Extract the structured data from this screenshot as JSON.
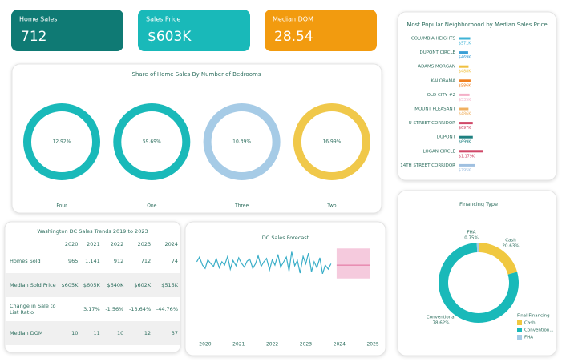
{
  "kpis": [
    {
      "label": "Home Sales",
      "value": "712",
      "color": "#0f7a74"
    },
    {
      "label": "Sales Price",
      "value": "$603K",
      "color": "#19b9b9"
    },
    {
      "label": "Median DOM",
      "value": "28.54",
      "color": "#f29b0f"
    }
  ],
  "chart_data": [
    {
      "type": "donut-grid",
      "title": "Share of Home Sales By Number of Bedrooms",
      "categories": [
        "Four",
        "One",
        "Three",
        "Two"
      ],
      "values": [
        12.92,
        59.69,
        10.39,
        16.99
      ],
      "value_labels": [
        "12.92%",
        "59.69%",
        "10.39%",
        "16.99%"
      ],
      "colors": [
        "#19b9b9",
        "#19b9b9",
        "#a6cbe6",
        "#f0c84a"
      ]
    },
    {
      "type": "hbar",
      "title": "Most Popular Neighborhood by Median Sales Price",
      "categories": [
        "COLUMBIA HEIGHTS",
        "DUPONT CIRCLE",
        "ADAMS MORGAN",
        "KALORAMA",
        "OLD CITY #2",
        "MOUNT PLEASANT",
        "U STREET CORRIDOR",
        "DUPONT",
        "LOGAN CIRCLE",
        "14TH STREET CORRIDOR"
      ],
      "values": [
        571,
        469,
        488,
        586,
        535,
        486,
        697,
        699,
        1179,
        795
      ],
      "value_labels": [
        "$571K",
        "$469K",
        "$488K",
        "$586K",
        "$535K",
        "$486K",
        "$697K",
        "$699K",
        "$1,179K",
        "$795K"
      ],
      "colors": [
        "#3fb3d6",
        "#3a9fd6",
        "#f0c040",
        "#f08020",
        "#f4b0c8",
        "#f0b060",
        "#d04868",
        "#1e8080",
        "#d04868",
        "#a0c0e0"
      ]
    },
    {
      "type": "line",
      "title": "DC Sales Forecast",
      "x": [
        2019.75,
        2019.83,
        2019.92,
        2020.0,
        2020.08,
        2020.17,
        2020.25,
        2020.33,
        2020.42,
        2020.5,
        2020.58,
        2020.67,
        2020.75,
        2020.83,
        2020.92,
        2021.0,
        2021.08,
        2021.17,
        2021.25,
        2021.33,
        2021.42,
        2021.5,
        2021.58,
        2021.67,
        2021.75,
        2021.83,
        2021.92,
        2022.0,
        2022.08,
        2022.17,
        2022.25,
        2022.33,
        2022.42,
        2022.5,
        2022.58,
        2022.67,
        2022.75,
        2022.83,
        2022.92,
        2023.0,
        2023.08,
        2023.17,
        2023.25,
        2023.33,
        2023.42,
        2023.5,
        2023.58,
        2023.67,
        2023.75
      ],
      "values": [
        55,
        62,
        50,
        45,
        58,
        52,
        48,
        60,
        46,
        55,
        50,
        63,
        44,
        57,
        49,
        61,
        53,
        47,
        56,
        59,
        45,
        52,
        64,
        48,
        55,
        60,
        43,
        58,
        50,
        66,
        47,
        54,
        62,
        41,
        70,
        49,
        57,
        38,
        63,
        52,
        68,
        40,
        55,
        46,
        61,
        37,
        50,
        44,
        52
      ],
      "color": "#3aaec8",
      "forecast": {
        "x": [
          2023.92,
          2024.92
        ],
        "values": [
          50,
          50
        ],
        "lower": [
          30,
          30
        ],
        "upper": [
          75,
          75
        ],
        "color": "#e06a98",
        "band_color": "#f5cadd"
      },
      "xlim": [
        2019.62,
        2025.26
      ],
      "xticks": [
        2020,
        2021,
        2022,
        2023,
        2024,
        2025
      ],
      "ylim": [
        20,
        85
      ]
    },
    {
      "type": "donut",
      "title": "Financing Type",
      "categories": [
        "Cash",
        "Conventional",
        "FHA"
      ],
      "values": [
        20.63,
        78.62,
        0.75
      ],
      "value_labels": [
        "20.63%",
        "78.62%",
        "0.75%"
      ],
      "colors": [
        "#f0c840",
        "#19b9b9",
        "#a6cbe6"
      ],
      "legend": {
        "title": "Final Financing",
        "labels": [
          "Cash",
          "Convention...",
          "FHA"
        ],
        "position": "bottom-right"
      }
    }
  ],
  "table": {
    "title": "Washington DC Sales Trends 2019 to 2023",
    "columns": [
      "2020",
      "2021",
      "2022",
      "2023",
      "2024"
    ],
    "rows": [
      {
        "label": "Homes Sold",
        "cells": [
          "965",
          "1,141",
          "912",
          "712",
          "74"
        ]
      },
      {
        "label": "Median Sold Price",
        "cells": [
          "$605K",
          "$605K",
          "$640K",
          "$602K",
          "$515K"
        ]
      },
      {
        "label": "Change in Sale to List Ratio",
        "cells": [
          null,
          "3.17%",
          "-1.56%",
          "-13.64%",
          "-44.76%"
        ]
      },
      {
        "label": "Median DOM",
        "cells": [
          "10",
          "11",
          "10",
          "12",
          "37"
        ]
      }
    ]
  }
}
